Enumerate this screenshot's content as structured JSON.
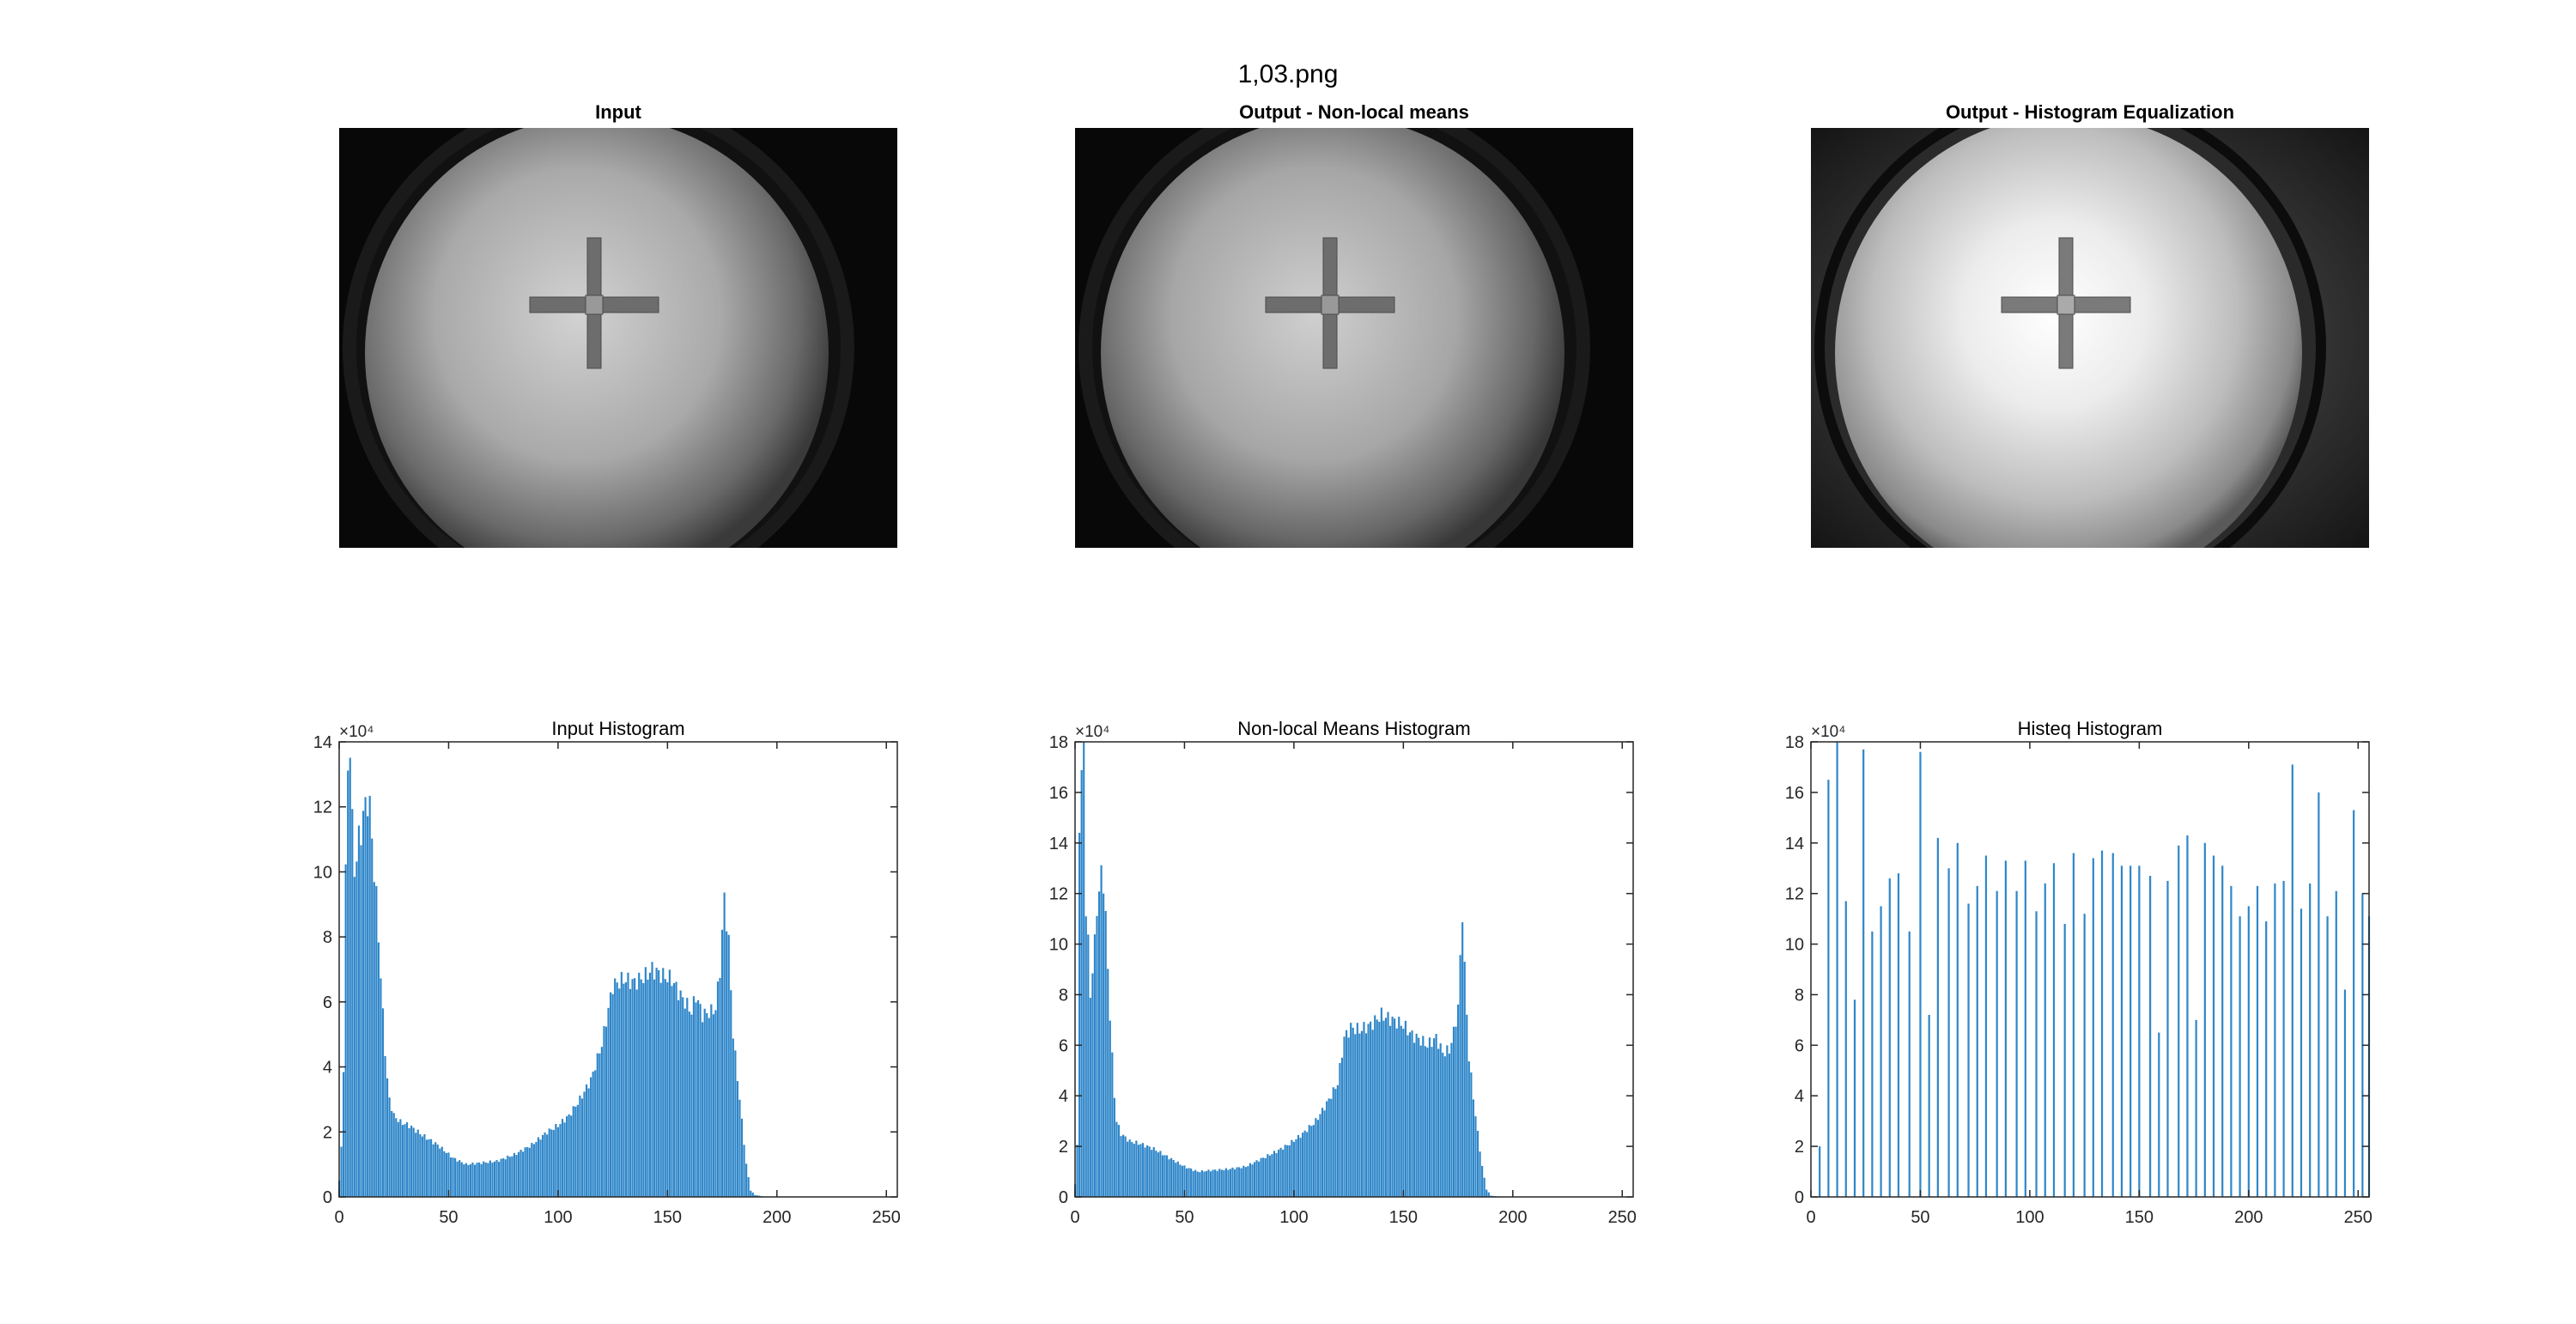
{
  "figure_title": "1,03.png",
  "images": [
    {
      "title": "Input",
      "style": "input"
    },
    {
      "title": "Output - Non-local means",
      "style": "nlm"
    },
    {
      "title": "Output - Histogram Equalization",
      "style": "histeq"
    }
  ],
  "colors": {
    "bar": "#2E86C9",
    "axis": "#262626",
    "background": "#ffffff"
  },
  "chart_data": [
    {
      "type": "bar",
      "title": "Input Histogram",
      "xlabel": "",
      "ylabel": "",
      "xlim": [
        0,
        255
      ],
      "ylim": [
        0,
        140000
      ],
      "exponent_label": "×10⁴",
      "xticks": [
        0,
        50,
        100,
        150,
        200,
        250
      ],
      "xtick_labels": [
        "0",
        "50",
        "100",
        "150",
        "200",
        "250"
      ],
      "yticks": [
        0,
        20000,
        40000,
        60000,
        80000,
        100000,
        120000,
        140000
      ],
      "ytick_labels": [
        "0",
        "2",
        "4",
        "6",
        "8",
        "10",
        "12",
        "14"
      ],
      "grid": false,
      "bin_width": 1,
      "profile": [
        [
          0,
          5000
        ],
        [
          1,
          15000
        ],
        [
          2,
          40000
        ],
        [
          3,
          100000
        ],
        [
          4,
          130000
        ],
        [
          5,
          140000
        ],
        [
          6,
          115000
        ],
        [
          7,
          100000
        ],
        [
          8,
          105000
        ],
        [
          9,
          110000
        ],
        [
          10,
          112000
        ],
        [
          11,
          118000
        ],
        [
          12,
          120000
        ],
        [
          13,
          122000
        ],
        [
          14,
          120000
        ],
        [
          15,
          110000
        ],
        [
          16,
          100000
        ],
        [
          17,
          92000
        ],
        [
          18,
          80000
        ],
        [
          19,
          68000
        ],
        [
          20,
          56000
        ],
        [
          21,
          45000
        ],
        [
          22,
          36000
        ],
        [
          23,
          30000
        ],
        [
          25,
          25000
        ],
        [
          28,
          23000
        ],
        [
          32,
          22000
        ],
        [
          38,
          19000
        ],
        [
          45,
          16000
        ],
        [
          52,
          12000
        ],
        [
          58,
          10000
        ],
        [
          65,
          10500
        ],
        [
          72,
          11000
        ],
        [
          80,
          13000
        ],
        [
          88,
          16000
        ],
        [
          95,
          20000
        ],
        [
          100,
          22000
        ],
        [
          105,
          25000
        ],
        [
          110,
          30000
        ],
        [
          115,
          36000
        ],
        [
          120,
          47000
        ],
        [
          125,
          65000
        ],
        [
          130,
          67000
        ],
        [
          135,
          66000
        ],
        [
          140,
          68000
        ],
        [
          143,
          70000
        ],
        [
          148,
          68000
        ],
        [
          152,
          67000
        ],
        [
          155,
          63000
        ],
        [
          158,
          60000
        ],
        [
          161,
          57000
        ],
        [
          163,
          62000
        ],
        [
          166,
          56000
        ],
        [
          170,
          57000
        ],
        [
          172,
          58000
        ],
        [
          174,
          70000
        ],
        [
          176,
          92000
        ],
        [
          178,
          78000
        ],
        [
          180,
          50000
        ],
        [
          183,
          30000
        ],
        [
          186,
          10000
        ],
        [
          188,
          2000
        ],
        [
          190,
          600
        ],
        [
          195,
          0
        ],
        [
          255,
          0
        ]
      ]
    },
    {
      "type": "bar",
      "title": "Non-local Means Histogram",
      "xlabel": "",
      "ylabel": "",
      "xlim": [
        0,
        255
      ],
      "ylim": [
        0,
        180000
      ],
      "exponent_label": "×10⁴",
      "xticks": [
        0,
        50,
        100,
        150,
        200,
        250
      ],
      "xtick_labels": [
        "0",
        "50",
        "100",
        "150",
        "200",
        "250"
      ],
      "yticks": [
        0,
        20000,
        40000,
        60000,
        80000,
        100000,
        120000,
        140000,
        160000,
        180000
      ],
      "ytick_labels": [
        "0",
        "2",
        "4",
        "6",
        "8",
        "10",
        "12",
        "14",
        "16",
        "18"
      ],
      "grid": false,
      "bin_width": 1,
      "profile": [
        [
          0,
          5000
        ],
        [
          1,
          20000
        ],
        [
          2,
          150000
        ],
        [
          3,
          165000
        ],
        [
          4,
          180000
        ],
        [
          5,
          115000
        ],
        [
          6,
          100000
        ],
        [
          7,
          80000
        ],
        [
          8,
          90000
        ],
        [
          9,
          100000
        ],
        [
          10,
          115000
        ],
        [
          11,
          120000
        ],
        [
          12,
          128000
        ],
        [
          13,
          125000
        ],
        [
          14,
          110000
        ],
        [
          15,
          90000
        ],
        [
          16,
          72000
        ],
        [
          17,
          55000
        ],
        [
          18,
          40000
        ],
        [
          19,
          30000
        ],
        [
          21,
          25000
        ],
        [
          25,
          22000
        ],
        [
          30,
          21000
        ],
        [
          36,
          19000
        ],
        [
          42,
          16000
        ],
        [
          50,
          12000
        ],
        [
          56,
          10000
        ],
        [
          62,
          10500
        ],
        [
          70,
          11000
        ],
        [
          78,
          12000
        ],
        [
          85,
          15000
        ],
        [
          92,
          18000
        ],
        [
          98,
          21000
        ],
        [
          104,
          25000
        ],
        [
          110,
          30000
        ],
        [
          115,
          37000
        ],
        [
          120,
          45000
        ],
        [
          123,
          63000
        ],
        [
          126,
          67000
        ],
        [
          130,
          66000
        ],
        [
          135,
          68000
        ],
        [
          140,
          72000
        ],
        [
          145,
          70000
        ],
        [
          150,
          68000
        ],
        [
          154,
          64000
        ],
        [
          158,
          62000
        ],
        [
          161,
          60000
        ],
        [
          165,
          63000
        ],
        [
          168,
          57000
        ],
        [
          171,
          58000
        ],
        [
          173,
          65000
        ],
        [
          175,
          75000
        ],
        [
          177,
          113000
        ],
        [
          178,
          90000
        ],
        [
          180,
          55000
        ],
        [
          183,
          32000
        ],
        [
          186,
          12000
        ],
        [
          188,
          3000
        ],
        [
          190,
          500
        ],
        [
          195,
          0
        ],
        [
          255,
          0
        ]
      ]
    },
    {
      "type": "bar",
      "title": "Histeq Histogram",
      "xlabel": "",
      "ylabel": "",
      "xlim": [
        0,
        255
      ],
      "ylim": [
        0,
        180000
      ],
      "exponent_label": "×10⁴",
      "xticks": [
        0,
        50,
        100,
        150,
        200,
        250
      ],
      "xtick_labels": [
        "0",
        "50",
        "100",
        "150",
        "200",
        "250"
      ],
      "yticks": [
        0,
        20000,
        40000,
        60000,
        80000,
        100000,
        120000,
        140000,
        160000,
        180000
      ],
      "ytick_labels": [
        "0",
        "2",
        "4",
        "6",
        "8",
        "10",
        "12",
        "14",
        "16",
        "18"
      ],
      "grid": false,
      "x": [
        4,
        8,
        12,
        16,
        20,
        24,
        28,
        32,
        36,
        40,
        45,
        50,
        54,
        58,
        63,
        67,
        72,
        76,
        80,
        85,
        89,
        94,
        98,
        103,
        107,
        111,
        116,
        120,
        125,
        129,
        133,
        138,
        142,
        146,
        150,
        155,
        159,
        163,
        168,
        172,
        176,
        180,
        184,
        188,
        192,
        196,
        200,
        204,
        208,
        212,
        216,
        220,
        224,
        228,
        232,
        236,
        240,
        244,
        248,
        252,
        255
      ],
      "values": [
        20000,
        165000,
        182000,
        117000,
        78000,
        177000,
        105000,
        115000,
        126000,
        128000,
        105000,
        176000,
        72000,
        142000,
        130000,
        140000,
        116000,
        123000,
        135000,
        121000,
        133000,
        121000,
        133000,
        113000,
        124000,
        132000,
        108000,
        136000,
        112000,
        134000,
        137000,
        136000,
        131000,
        131000,
        131000,
        127000,
        65000,
        125000,
        139000,
        143000,
        70000,
        140000,
        135000,
        131000,
        123000,
        111000,
        115000,
        123000,
        109000,
        124000,
        125000,
        171000,
        114000,
        124000,
        160000,
        111000,
        121000,
        82000,
        153000,
        120000,
        111000
      ]
    }
  ]
}
